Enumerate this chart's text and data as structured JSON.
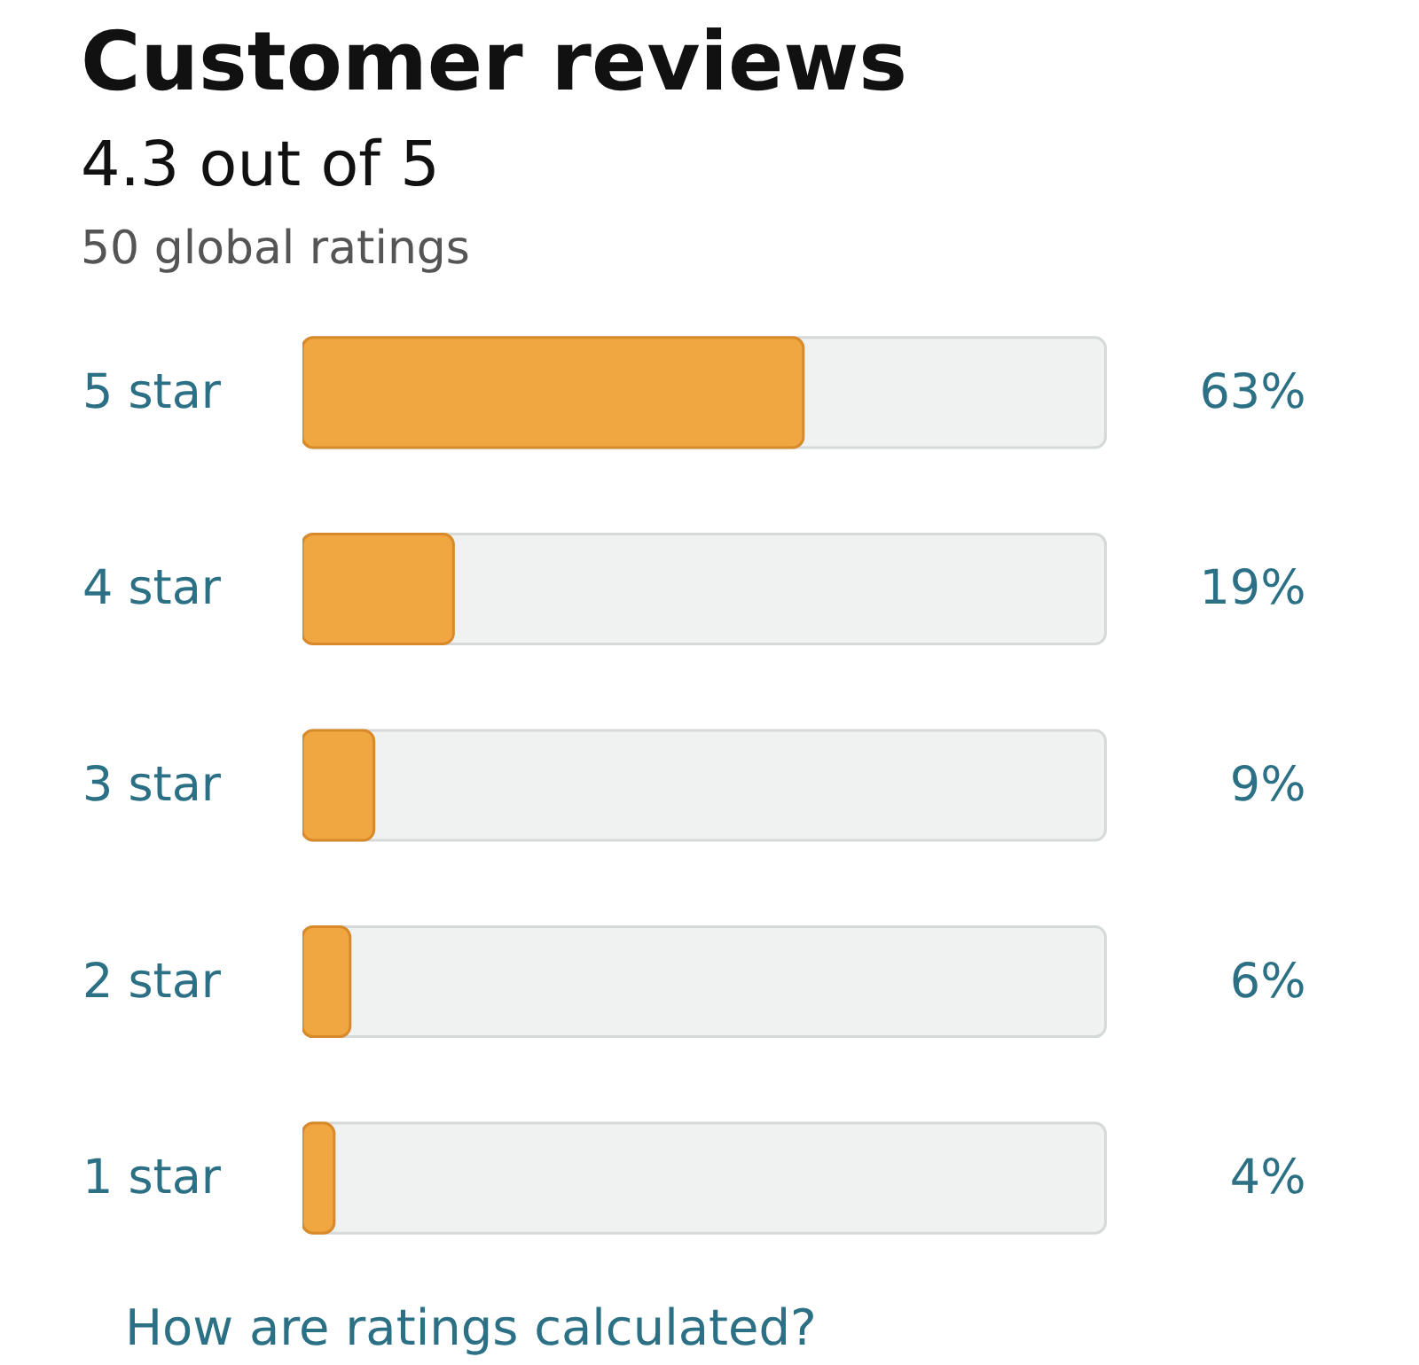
{
  "chart_data": {
    "type": "bar",
    "orientation": "horizontal",
    "title": "Customer reviews",
    "subtitle": "4.3 out of 5",
    "annotations": [
      "50 global ratings",
      "How are ratings calculated?"
    ],
    "categories": [
      "5 star",
      "4 star",
      "3 star",
      "2 star",
      "1 star"
    ],
    "values": [
      63,
      19,
      9,
      6,
      4
    ],
    "value_labels": [
      "63%",
      "19%",
      "9%",
      "6%",
      "4%"
    ],
    "color": "#f0a742",
    "tick_labels": "y",
    "grid": false
  }
}
